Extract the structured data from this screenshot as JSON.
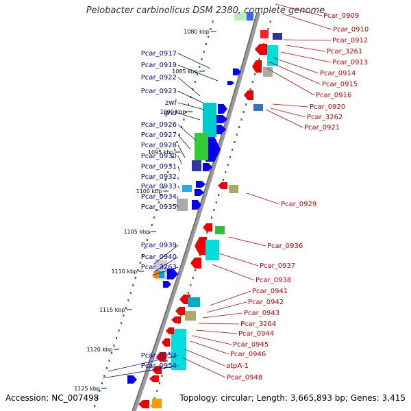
{
  "title": "Pelobacter carbinolicus DSM 2380, complete genome",
  "accession": "Accession: NC_007498",
  "topology": "Topology: circular; Length: 3,665,893 bp; Genes: 3,415",
  "ticks": [
    "1080 kbp",
    "1085 kbp",
    "1090 kbp",
    "1095 kbp",
    "1100 kbp",
    "1105 kbp",
    "1110 kbp",
    "1115 kbp",
    "1120 kbp",
    "1125 kbp"
  ],
  "left_genes": [
    "Pcar_0917",
    "Pcar_0919",
    "Pcar_0922",
    "Pcar_0923",
    "zwf",
    "gnd",
    "Pcar_0926",
    "Pcar_0927",
    "Pcar_0928",
    "Pcar_0930",
    "Pcar_0931",
    "Pcar_0932",
    "Pcar_0933",
    "Pcar_0934",
    "Pcar_0935",
    "Pcar_0939",
    "Pcar_0940",
    "Pcar_3263",
    "Pcar_0953",
    "Pcar_0954"
  ],
  "right_genes": [
    "Pcar_0909",
    "Pcar_0910",
    "Pcar_0912",
    "Pcar_3261",
    "Pcar_0913",
    "Pcar_0914",
    "Pcar_0915",
    "Pcar_0916",
    "Pcar_0920",
    "Pcar_3262",
    "Pcar_0921",
    "Pcar_0929",
    "Pcar_0936",
    "Pcar_0937",
    "Pcar_0938",
    "Pcar_0941",
    "Pcar_0942",
    "Pcar_0943",
    "Pcar_3264",
    "Pcar_0944",
    "Pcar_0945",
    "Pcar_0946",
    "atpA-1",
    "Pcar_0948"
  ],
  "colors": {
    "left_label": "#0000aa",
    "right_label": "#cc0000",
    "backbone": "#888888",
    "dots": "#228822",
    "blue_gene": "#0000ee",
    "red_gene": "#ee0000"
  }
}
